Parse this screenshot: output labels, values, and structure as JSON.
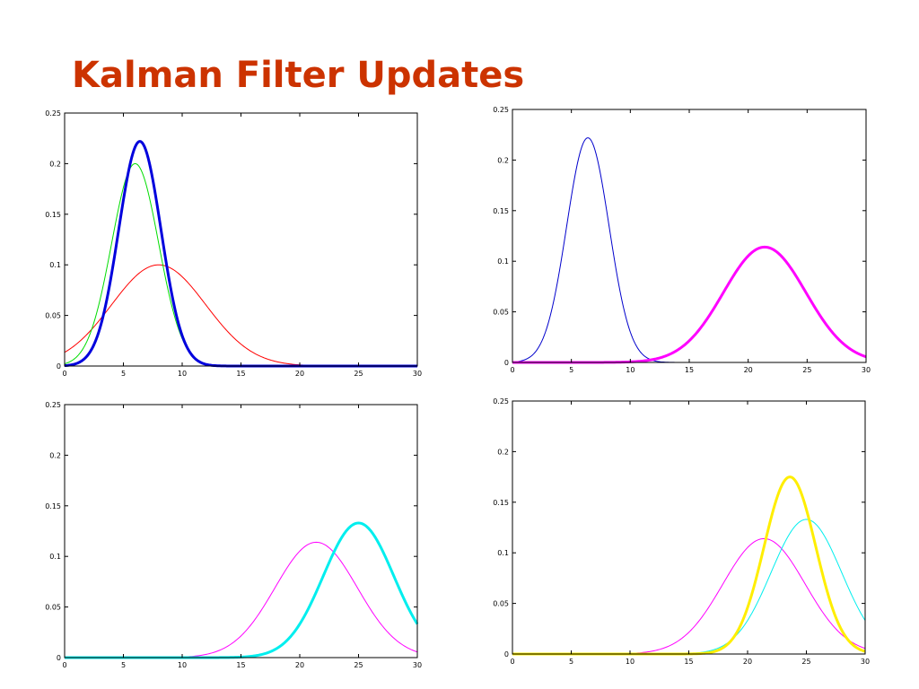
{
  "title": "Kalman Filter Updates",
  "chart_data": [
    {
      "type": "line",
      "title": "",
      "xlabel": "",
      "ylabel": "",
      "xlim": [
        0,
        30
      ],
      "ylim": [
        0,
        0.25
      ],
      "xticks": [
        "0",
        "5",
        "10",
        "15",
        "20",
        "25",
        "30"
      ],
      "yticks": [
        "0",
        "0.05",
        "0.1",
        "0.15",
        "0.2",
        "0.25"
      ],
      "grid": false,
      "series": [
        {
          "color": "#ff0000",
          "width": 1,
          "curve": {
            "mean": 8,
            "peak": 0.1,
            "sigma": 4
          }
        },
        {
          "color": "#00dd00",
          "width": 1,
          "curve": {
            "mean": 6,
            "peak": 0.2,
            "sigma": 2
          }
        },
        {
          "color": "#0000dd",
          "width": 3,
          "curve": {
            "mean": 6.4,
            "peak": 0.222,
            "sigma": 1.8
          }
        }
      ]
    },
    {
      "type": "line",
      "title": "",
      "xlabel": "",
      "ylabel": "",
      "xlim": [
        0,
        30
      ],
      "ylim": [
        0,
        0.25
      ],
      "xticks": [
        "0",
        "5",
        "10",
        "15",
        "20",
        "25",
        "30"
      ],
      "yticks": [
        "0",
        "0.05",
        "0.1",
        "0.15",
        "0.2",
        "0.25"
      ],
      "grid": false,
      "series": [
        {
          "color": "#0000cc",
          "width": 1,
          "curve": {
            "mean": 6.4,
            "peak": 0.222,
            "sigma": 1.8
          }
        },
        {
          "color": "#ff00ff",
          "width": 3,
          "curve": {
            "mean": 21.4,
            "peak": 0.114,
            "sigma": 3.5
          }
        }
      ]
    },
    {
      "type": "line",
      "title": "",
      "xlabel": "",
      "ylabel": "",
      "xlim": [
        0,
        30
      ],
      "ylim": [
        0,
        0.25
      ],
      "xticks": [
        "0",
        "5",
        "10",
        "15",
        "20",
        "25",
        "30"
      ],
      "yticks": [
        "0",
        "0.05",
        "0.1",
        "0.15",
        "0.2",
        "0.25"
      ],
      "grid": false,
      "series": [
        {
          "color": "#ff00ff",
          "width": 1,
          "curve": {
            "mean": 21.4,
            "peak": 0.114,
            "sigma": 3.5
          }
        },
        {
          "color": "#00eeee",
          "width": 3,
          "curve": {
            "mean": 25,
            "peak": 0.133,
            "sigma": 3
          }
        }
      ]
    },
    {
      "type": "line",
      "title": "",
      "xlabel": "",
      "ylabel": "",
      "xlim": [
        0,
        30
      ],
      "ylim": [
        0,
        0.25
      ],
      "xticks": [
        "0",
        "5",
        "10",
        "15",
        "20",
        "25",
        "30"
      ],
      "yticks": [
        "0",
        "0.05",
        "0.1",
        "0.15",
        "0.2",
        "0.25"
      ],
      "grid": false,
      "series": [
        {
          "color": "#ff00ff",
          "width": 1,
          "curve": {
            "mean": 21.4,
            "peak": 0.114,
            "sigma": 3.5
          }
        },
        {
          "color": "#00eeee",
          "width": 1,
          "curve": {
            "mean": 25,
            "peak": 0.133,
            "sigma": 3
          }
        },
        {
          "color": "#ffee00",
          "width": 3,
          "curve": {
            "mean": 23.6,
            "peak": 0.175,
            "sigma": 2.2
          }
        }
      ]
    }
  ]
}
